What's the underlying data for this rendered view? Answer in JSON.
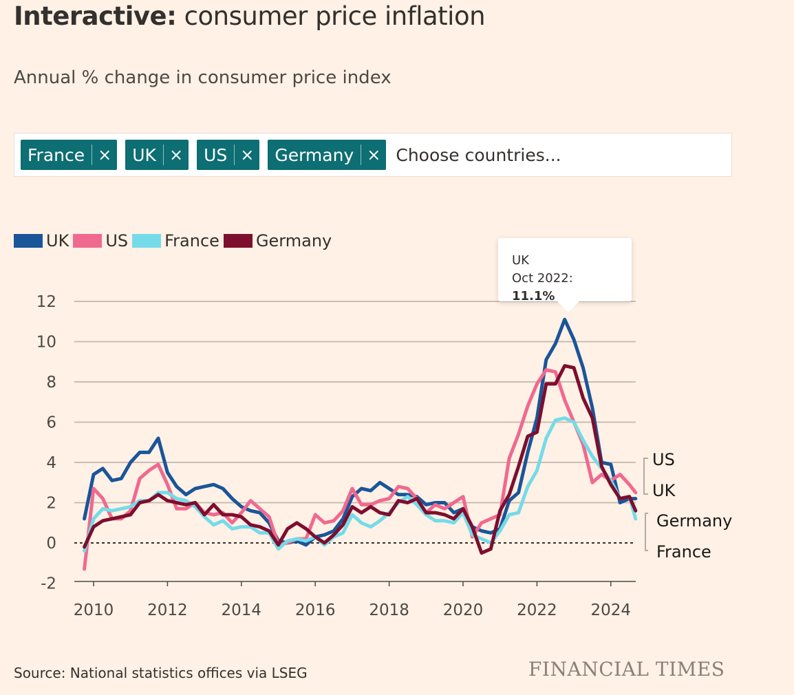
{
  "header": {
    "title_bold": "Interactive:",
    "title_rest": " consumer price inflation",
    "subtitle": "Annual % change in consumer price index"
  },
  "picker": {
    "tags": [
      "France",
      "UK",
      "US",
      "Germany"
    ],
    "remove_glyph": "×",
    "placeholder": "Choose countries..."
  },
  "tooltip": {
    "series": "UK",
    "date": "Oct 2022:",
    "value": "11.1%"
  },
  "footer": {
    "source": "Source: National statistics offices via LSEG",
    "brand": "FINANCIAL TIMES"
  },
  "chart_data": {
    "type": "line",
    "title": "Annual % change in consumer price index",
    "xlabel": "",
    "ylabel": "",
    "ylim": [
      -2,
      12
    ],
    "xlim": [
      2009.75,
      2024.67
    ],
    "yticks": [
      "12",
      "10",
      "8",
      "6",
      "4",
      "2",
      "0",
      "-2"
    ],
    "xticks": [
      "2010",
      "2012",
      "2014",
      "2016",
      "2018",
      "2020",
      "2022",
      "2024"
    ],
    "grid": true,
    "zero_line": "dotted",
    "legend_placement": "top-left",
    "x": [
      2009.75,
      2010,
      2010.25,
      2010.5,
      2010.75,
      2011,
      2011.25,
      2011.5,
      2011.75,
      2012,
      2012.25,
      2012.5,
      2012.75,
      2013,
      2013.25,
      2013.5,
      2013.75,
      2014,
      2014.25,
      2014.5,
      2014.75,
      2015,
      2015.25,
      2015.5,
      2015.75,
      2016,
      2016.25,
      2016.5,
      2016.75,
      2017,
      2017.25,
      2017.5,
      2017.75,
      2018,
      2018.25,
      2018.5,
      2018.75,
      2019,
      2019.25,
      2019.5,
      2019.75,
      2020,
      2020.25,
      2020.5,
      2020.75,
      2021,
      2021.25,
      2021.5,
      2021.75,
      2022,
      2022.25,
      2022.5,
      2022.75,
      2023,
      2023.25,
      2023.5,
      2023.75,
      2024,
      2024.25,
      2024.5,
      2024.67
    ],
    "series": [
      {
        "name": "UK",
        "color": "#1a5599",
        "values": [
          1.2,
          3.4,
          3.7,
          3.1,
          3.2,
          4.0,
          4.5,
          4.5,
          5.2,
          3.5,
          2.8,
          2.4,
          2.7,
          2.8,
          2.9,
          2.7,
          2.2,
          1.8,
          1.6,
          1.5,
          1.0,
          0.1,
          0.0,
          0.1,
          -0.1,
          0.3,
          0.4,
          0.6,
          1.2,
          2.3,
          2.7,
          2.6,
          3.0,
          2.7,
          2.4,
          2.4,
          2.3,
          1.9,
          2.0,
          2.0,
          1.5,
          1.7,
          0.8,
          0.6,
          0.5,
          0.7,
          2.1,
          2.5,
          4.5,
          6.2,
          9.1,
          9.9,
          11.1,
          10.1,
          8.7,
          6.7,
          4.0,
          3.9,
          2.0,
          2.2,
          2.2
        ]
      },
      {
        "name": "US",
        "color": "#f0698f",
        "values": [
          -1.3,
          2.7,
          2.2,
          1.2,
          1.2,
          1.6,
          3.2,
          3.6,
          3.9,
          2.9,
          1.7,
          1.7,
          2.0,
          1.5,
          1.4,
          1.5,
          1.0,
          1.5,
          2.1,
          1.7,
          1.3,
          -0.1,
          0.0,
          0.2,
          0.2,
          1.4,
          1.0,
          1.1,
          1.6,
          2.7,
          1.9,
          1.9,
          2.1,
          2.2,
          2.8,
          2.7,
          2.2,
          1.5,
          1.9,
          1.7,
          2.0,
          2.3,
          0.3,
          1.0,
          1.2,
          1.4,
          4.2,
          5.4,
          6.8,
          7.9,
          8.6,
          8.5,
          7.1,
          6.0,
          4.9,
          3.0,
          3.4,
          3.1,
          3.4,
          2.9,
          2.5
        ]
      },
      {
        "name": "France",
        "color": "#75dbe8",
        "values": [
          -0.4,
          1.2,
          1.7,
          1.6,
          1.7,
          1.8,
          2.1,
          2.1,
          2.5,
          2.5,
          2.2,
          2.1,
          1.8,
          1.3,
          0.9,
          1.1,
          0.7,
          0.8,
          0.8,
          0.5,
          0.5,
          -0.3,
          0.1,
          0.2,
          0.1,
          0.3,
          -0.1,
          0.3,
          0.5,
          1.4,
          1.0,
          0.8,
          1.1,
          1.5,
          2.0,
          2.3,
          1.9,
          1.4,
          1.1,
          1.1,
          1.0,
          1.5,
          0.4,
          0.2,
          0.0,
          0.6,
          1.4,
          1.5,
          2.8,
          3.6,
          5.2,
          6.1,
          6.2,
          6.0,
          5.1,
          4.3,
          3.7,
          3.1,
          2.2,
          2.3,
          1.2
        ]
      },
      {
        "name": "Germany",
        "color": "#7d0e2e",
        "values": [
          -0.2,
          0.8,
          1.1,
          1.2,
          1.3,
          1.4,
          2.0,
          2.1,
          2.4,
          2.1,
          2.0,
          1.9,
          2.0,
          1.4,
          1.9,
          1.4,
          1.4,
          1.3,
          0.9,
          0.8,
          0.6,
          -0.1,
          0.7,
          1.0,
          0.7,
          0.3,
          0.0,
          0.4,
          0.9,
          1.8,
          1.5,
          1.8,
          1.5,
          1.4,
          2.1,
          2.0,
          2.2,
          1.5,
          1.5,
          1.4,
          1.2,
          1.7,
          0.8,
          -0.5,
          -0.3,
          1.6,
          2.4,
          3.8,
          5.3,
          5.5,
          7.9,
          7.9,
          8.8,
          8.7,
          7.2,
          6.2,
          3.8,
          2.9,
          2.2,
          2.3,
          1.6
        ]
      }
    ],
    "end_labels": [
      "US",
      "UK",
      "Germany",
      "France"
    ]
  }
}
